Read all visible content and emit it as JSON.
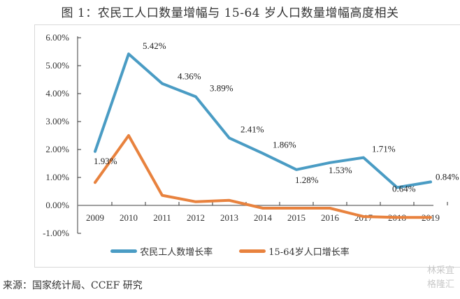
{
  "title": "图 1：农民工人口数量增幅与 15-64 岁人口数量增幅高度相关",
  "source": "来源：国家统计局、CCEF 研究",
  "watermark": {
    "line1": "林采宜",
    "line2": "格隆汇"
  },
  "colors": {
    "series1": "#4a9cc4",
    "series2": "#e8823e",
    "axis": "#7f7f7f",
    "frame": "#d9d9d9"
  },
  "chart_data": {
    "type": "line",
    "title": "图 1：农民工人口数量增幅与 15-64 岁人口数量增幅高度相关",
    "xlabel": "",
    "ylabel": "",
    "categories": [
      "2009",
      "2010",
      "2011",
      "2012",
      "2013",
      "2014",
      "2015",
      "2016",
      "2017",
      "2018",
      "2019"
    ],
    "ylim": [
      -1.0,
      6.0
    ],
    "yticks": [
      "-1.00%",
      "0.00%",
      "1.00%",
      "2.00%",
      "3.00%",
      "4.00%",
      "5.00%",
      "6.00%"
    ],
    "ytick_values": [
      -1,
      0,
      1,
      2,
      3,
      4,
      5,
      6
    ],
    "grid": false,
    "legend_position": "bottom",
    "series": [
      {
        "name": "农民工人数增长率",
        "color": "#4a9cc4",
        "values": [
          1.93,
          5.42,
          4.36,
          3.89,
          2.41,
          1.86,
          1.28,
          1.53,
          1.71,
          0.64,
          0.84
        ],
        "labels": [
          "1.93%",
          "5.42%",
          "4.36%",
          "3.89%",
          "2.41%",
          "1.86%",
          "1.28%",
          "1.53%",
          "1.71%",
          "0.64%",
          "0.84%"
        ]
      },
      {
        "name": "15-64岁人口增长率",
        "color": "#e8823e",
        "values": [
          0.82,
          2.5,
          0.36,
          0.13,
          0.18,
          -0.1,
          -0.1,
          -0.1,
          -0.4,
          -0.43,
          -0.43
        ]
      }
    ]
  }
}
